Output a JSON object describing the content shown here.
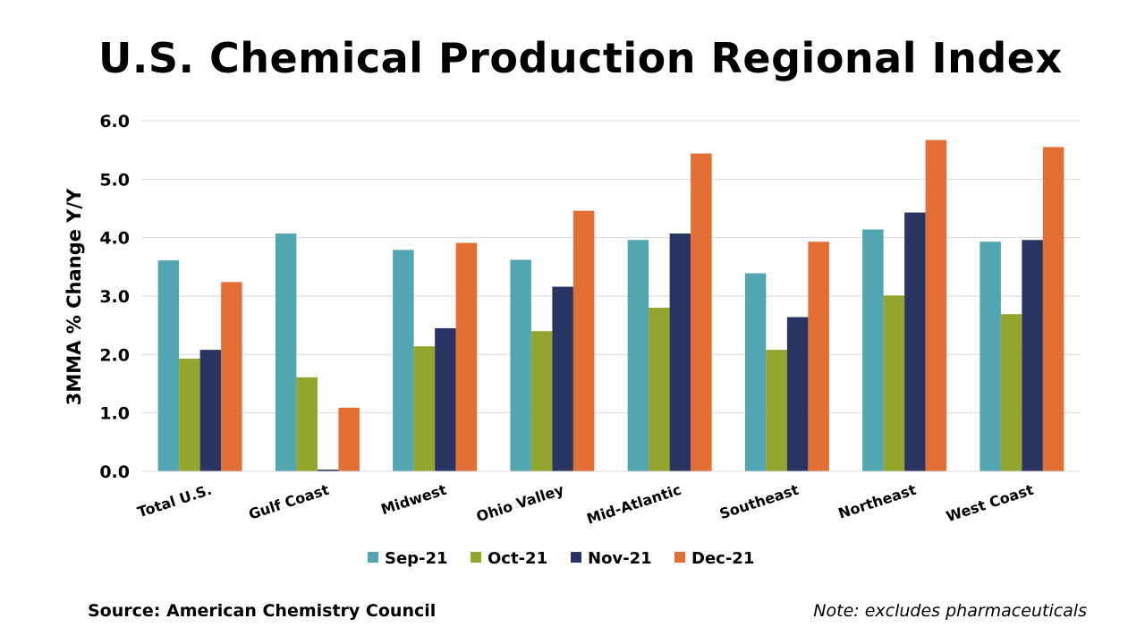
{
  "title": "U.S. Chemical Production Regional Index",
  "source": "Source: American Chemistry Council",
  "note": "Note: excludes pharmaceuticals",
  "chart_data": {
    "type": "bar",
    "title": "U.S. Chemical Production Regional Index",
    "ylabel": "3MMA % Change Y/Y",
    "xlabel": "",
    "ylim": [
      0,
      6
    ],
    "yticks": [
      "0.0",
      "1.0",
      "2.0",
      "3.0",
      "4.0",
      "5.0",
      "6.0"
    ],
    "grid": true,
    "legend_position": "bottom",
    "categories": [
      "Total U.S.",
      "Gulf Coast",
      "Midwest",
      "Ohio Valley",
      "Mid-Atlantic",
      "Southeast",
      "Northeast",
      "West Coast"
    ],
    "series": [
      {
        "name": "Sep-21",
        "color": "#52A6B1",
        "values": [
          3.61,
          4.07,
          3.79,
          3.62,
          3.96,
          3.39,
          4.14,
          3.93
        ]
      },
      {
        "name": "Oct-21",
        "color": "#93A52C",
        "values": [
          1.93,
          1.61,
          2.14,
          2.4,
          2.8,
          2.08,
          3.01,
          2.69
        ]
      },
      {
        "name": "Nov-21",
        "color": "#283563",
        "values": [
          2.08,
          0.03,
          2.45,
          3.16,
          4.07,
          2.64,
          4.43,
          3.96
        ]
      },
      {
        "name": "Dec-21",
        "color": "#E46F35",
        "values": [
          3.24,
          1.09,
          3.91,
          4.46,
          5.44,
          3.93,
          5.67,
          5.55
        ]
      }
    ]
  }
}
